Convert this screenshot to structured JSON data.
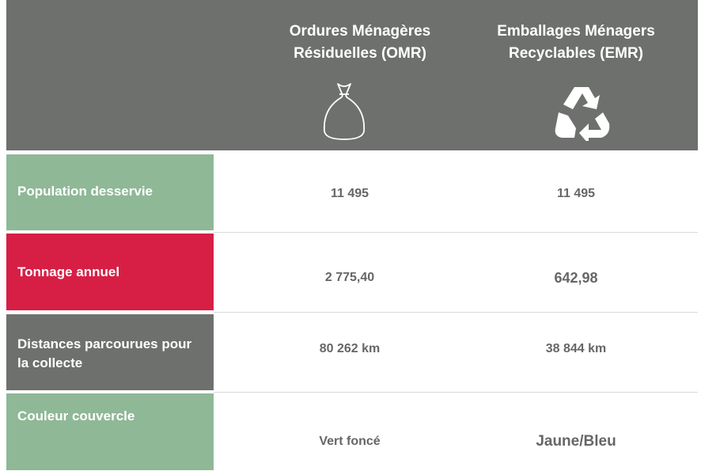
{
  "header": {
    "columns": [
      {
        "lines": [
          "Ordures Ménagères",
          "Résiduelles (OMR)"
        ]
      },
      {
        "lines": [
          "Emballages Ménagers",
          "Recyclables (EMR)"
        ]
      }
    ]
  },
  "table": {
    "rows": [
      {
        "label": "Population  desservie",
        "values": [
          "11 495",
          "11 495"
        ]
      },
      {
        "label": "Tonnage annuel",
        "values": [
          "2 775,40",
          "642,98"
        ]
      },
      {
        "label": "Distances parcourues pour la collecte",
        "values": [
          "80 262 km",
          "38 844 km"
        ]
      },
      {
        "label": "Couleur couvercle",
        "values": [
          "Vert foncé",
          "Jaune/Bleu"
        ]
      }
    ]
  }
}
